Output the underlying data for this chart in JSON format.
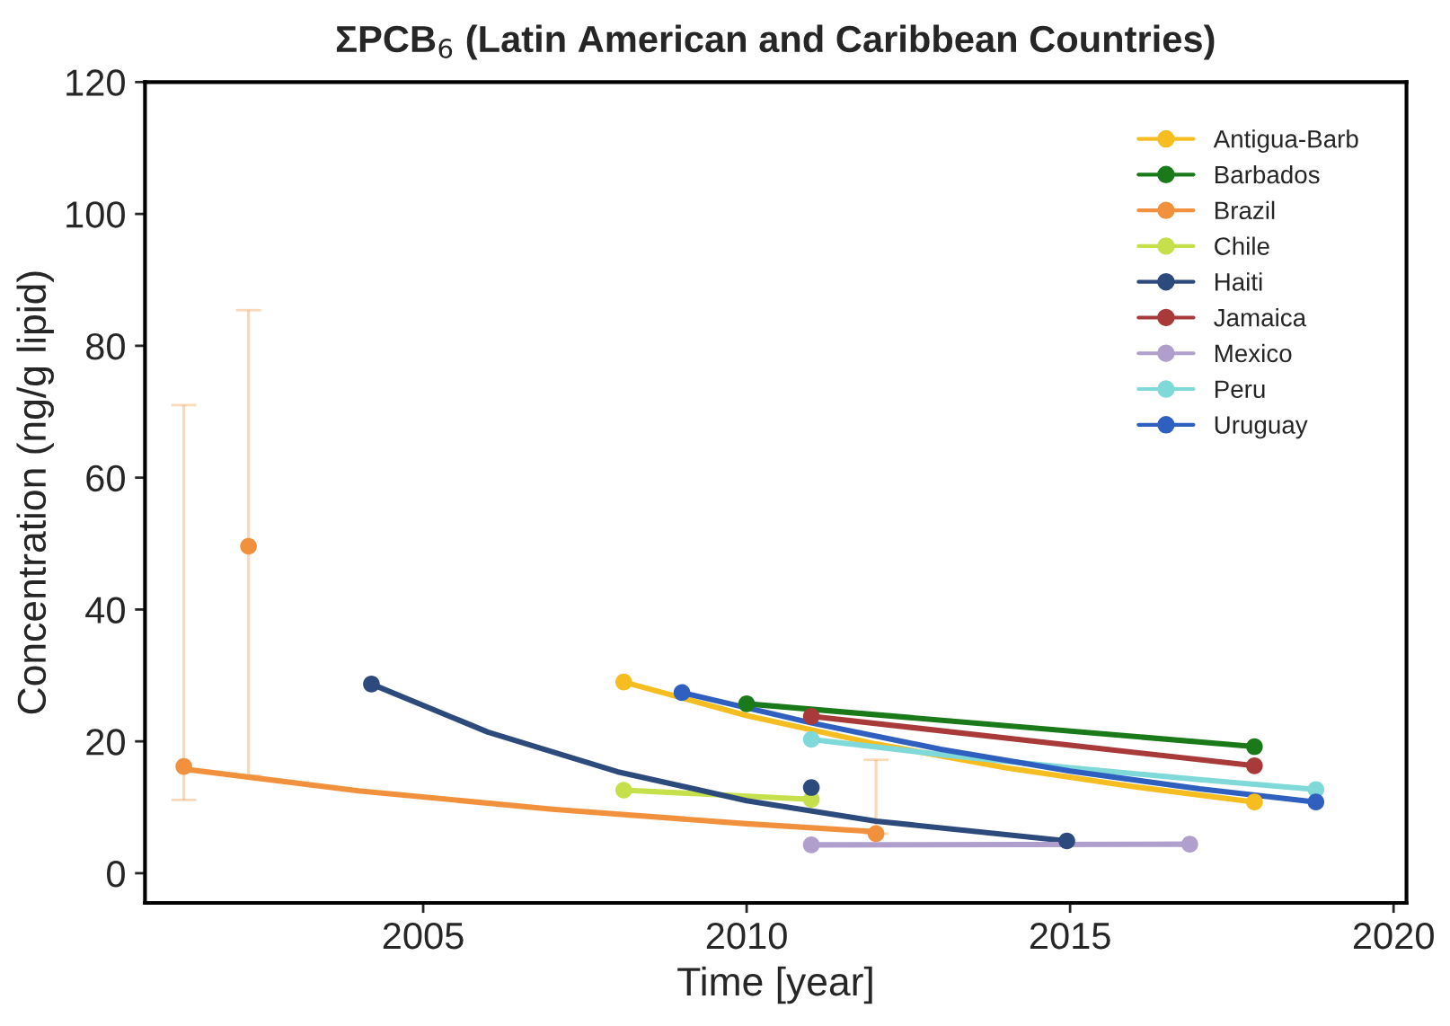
{
  "chart_data": {
    "type": "scatter",
    "title": "ΣPCB$_{6}$ (Latin American and Caribbean Countries)",
    "xlabel": "Time [year]",
    "ylabel": "Concentration (ng/g lipid)",
    "xlim": [
      2000.7,
      2020.2
    ],
    "xticks": [
      2005,
      2010,
      2015,
      2020
    ],
    "ylim": [
      -4.5,
      120
    ],
    "yticks": [
      0,
      20,
      40,
      60,
      80,
      100,
      120
    ],
    "grid": false,
    "legend": "top right",
    "series": [
      {
        "name": "Antigua-Barb",
        "color": "#f5bd1f",
        "marker": "circle",
        "x": [
          2008.1,
          2017.85
        ],
        "values": [
          29.0,
          10.8
        ]
      },
      {
        "name": "Barbados",
        "color": "#1a7a1a",
        "marker": "circle",
        "x": [
          2010.0,
          2017.85
        ],
        "values": [
          25.7,
          19.2
        ]
      },
      {
        "name": "Brazil",
        "color": "#f2913d",
        "marker": "circle",
        "x": [
          2001.3,
          2002.3,
          2012.0
        ],
        "values": [
          16.2,
          49.6,
          6.0
        ],
        "errors": [
          [
            11.1,
            71.0
          ],
          [
            14.8,
            85.4
          ],
          [
            6.0,
            17.2
          ]
        ]
      },
      {
        "name": "Chile",
        "color": "#c5e04a",
        "marker": "circle",
        "x": [
          2008.1,
          2011.0
        ],
        "values": [
          12.6,
          11.2
        ]
      },
      {
        "name": "Haiti",
        "color": "#2c4a7c",
        "marker": "circle",
        "x": [
          2004.2,
          2011.0,
          2014.95
        ],
        "values": [
          28.7,
          13.0,
          4.9
        ]
      },
      {
        "name": "Jamaica",
        "color": "#a83a3a",
        "marker": "circle",
        "x": [
          2011.0,
          2017.85
        ],
        "values": [
          23.8,
          16.3
        ]
      },
      {
        "name": "Mexico",
        "color": "#b09fcc",
        "marker": "circle",
        "x": [
          2011.0,
          2016.85
        ],
        "values": [
          4.3,
          4.4
        ]
      },
      {
        "name": "Peru",
        "color": "#7fd9d9",
        "marker": "circle",
        "x": [
          2011.0,
          2018.8
        ],
        "values": [
          20.3,
          12.7
        ]
      },
      {
        "name": "Uruguay",
        "color": "#2f5fbf",
        "marker": "circle",
        "x": [
          2009.0,
          2018.8
        ],
        "values": [
          27.4,
          10.8
        ]
      },
      {
        "type": "line",
        "color": "#f5bd1f",
        "x": [
          2008.1,
          2010,
          2012,
          2014,
          2016,
          2017.85
        ],
        "values": [
          29.0,
          23.9,
          19.6,
          16.0,
          13.1,
          10.8
        ]
      },
      {
        "type": "line",
        "color": "#1a7a1a",
        "x": [
          2010.0,
          2017.85
        ],
        "values": [
          25.7,
          19.2
        ]
      },
      {
        "type": "line",
        "color": "#f2913d",
        "x": [
          2001.3,
          2004,
          2007,
          2010,
          2012.0
        ],
        "values": [
          15.8,
          12.5,
          9.7,
          7.5,
          6.3
        ]
      },
      {
        "type": "line",
        "color": "#c5e04a",
        "x": [
          2008.1,
          2011.0
        ],
        "values": [
          12.6,
          11.2
        ]
      },
      {
        "type": "line",
        "color": "#2c4a7c",
        "x": [
          2004.2,
          2006,
          2008,
          2010,
          2012,
          2014.95
        ],
        "values": [
          28.7,
          21.4,
          15.4,
          11.0,
          7.9,
          4.9
        ]
      },
      {
        "type": "line",
        "color": "#a83a3a",
        "x": [
          2011.0,
          2017.85
        ],
        "values": [
          23.8,
          16.3
        ]
      },
      {
        "type": "line",
        "color": "#b09fcc",
        "x": [
          2011.0,
          2016.85
        ],
        "values": [
          4.3,
          4.4
        ]
      },
      {
        "type": "line",
        "color": "#7fd9d9",
        "x": [
          2011.0,
          2013,
          2015,
          2017,
          2018.8
        ],
        "values": [
          20.3,
          18.0,
          16.0,
          14.2,
          12.7
        ]
      },
      {
        "type": "line",
        "color": "#2f5fbf",
        "x": [
          2009.0,
          2011,
          2013,
          2015,
          2017,
          2018.8
        ],
        "values": [
          27.4,
          22.8,
          18.8,
          15.5,
          12.8,
          10.8
        ]
      }
    ]
  }
}
